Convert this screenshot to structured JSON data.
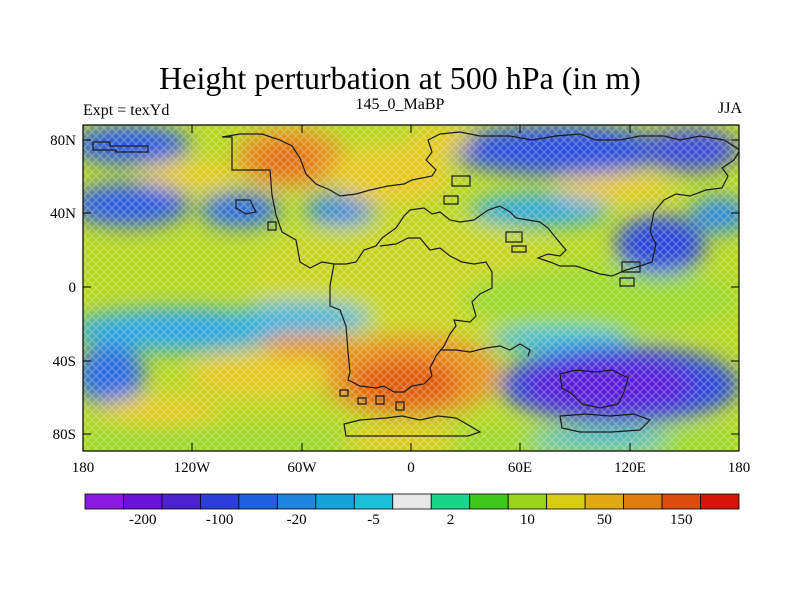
{
  "title": "Height perturbation at 500 hPa (in m)",
  "subtitle_left": "Expt = texYd",
  "subtitle_center": "145_0_MaBP",
  "subtitle_right": "JJA",
  "lon_ticks": [
    "180",
    "120W",
    "60W",
    "0",
    "60E",
    "120E",
    "180"
  ],
  "lat_ticks": [
    "80N",
    "40N",
    "0",
    "40S",
    "80S"
  ],
  "colorbar": {
    "colors": [
      "#8b1ae0",
      "#6a12d8",
      "#4b22cc",
      "#2c3ed8",
      "#1f62df",
      "#1d86dc",
      "#16a3da",
      "#1ac0d9",
      "#e8e8e8",
      "#1ad48a",
      "#3cc81c",
      "#98d41a",
      "#d8cc12",
      "#e0a812",
      "#e07d0e",
      "#dc4d0c",
      "#d81408"
    ],
    "labels": [
      "-200",
      "-100",
      "-20",
      "-5",
      "2",
      "10",
      "50",
      "150"
    ]
  },
  "colors": {
    "deep_negative": "#5a1ed8",
    "negative": "#2c5ae0",
    "weak_negative": "#2aa6e0",
    "neutral": "#b6d61e",
    "weak_positive": "#e6c81a",
    "positive": "#e6901a",
    "strong_positive": "#dc4d0c"
  }
}
